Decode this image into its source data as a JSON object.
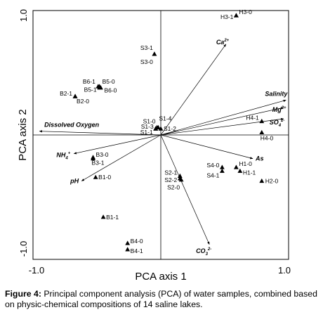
{
  "figure": {
    "caption_label": "Figure 4:",
    "caption_text": " Principal component analysis (PCA) of water samples, combined based on physic-chemical compositions of 14 saline lakes."
  },
  "chart_data": {
    "type": "scatter",
    "xlabel": "PCA axis 1",
    "ylabel": "PCA axis 2",
    "xlim": [
      -1.0,
      1.0
    ],
    "ylim": [
      -1.0,
      1.0
    ],
    "x_ticks": [
      "-1.0",
      "1.0"
    ],
    "y_ticks": [
      "1.0",
      "-1.0"
    ],
    "grid": false,
    "points": [
      {
        "x": 0.59,
        "y": 0.96,
        "label": "H3-0"
      },
      {
        "x": 0.59,
        "y": 0.96,
        "label": "H3-1"
      },
      {
        "x": -0.05,
        "y": 0.65,
        "label": "S3-1"
      },
      {
        "x": -0.05,
        "y": 0.65,
        "label": "S3-0"
      },
      {
        "x": -0.49,
        "y": 0.39,
        "label": "B6-1"
      },
      {
        "x": -0.48,
        "y": 0.39,
        "label": "B5-0"
      },
      {
        "x": -0.48,
        "y": 0.38,
        "label": "B5-1"
      },
      {
        "x": -0.47,
        "y": 0.38,
        "label": "B6-0"
      },
      {
        "x": -0.67,
        "y": 0.31,
        "label": "B2-1"
      },
      {
        "x": -0.67,
        "y": 0.31,
        "label": "B2-0"
      },
      {
        "x": -0.03,
        "y": 0.06,
        "label": "S1-0"
      },
      {
        "x": -0.02,
        "y": 0.06,
        "label": "S1-4"
      },
      {
        "x": -0.04,
        "y": 0.05,
        "label": "S1-3"
      },
      {
        "x": 0.0,
        "y": 0.05,
        "label": "S1-2"
      },
      {
        "x": -0.04,
        "y": 0.05,
        "label": "S1-1"
      },
      {
        "x": 0.79,
        "y": 0.11,
        "label": "H4-1"
      },
      {
        "x": 0.79,
        "y": 0.02,
        "label": "H4-0"
      },
      {
        "x": -0.53,
        "y": -0.18,
        "label": "B3-0"
      },
      {
        "x": -0.53,
        "y": -0.19,
        "label": "B3-1"
      },
      {
        "x": -0.51,
        "y": -0.34,
        "label": "B1-0"
      },
      {
        "x": 0.15,
        "y": -0.33,
        "label": "S2-1"
      },
      {
        "x": 0.15,
        "y": -0.35,
        "label": "S2-2"
      },
      {
        "x": 0.16,
        "y": -0.36,
        "label": "S2-0"
      },
      {
        "x": 0.48,
        "y": -0.26,
        "label": "S4-0"
      },
      {
        "x": 0.48,
        "y": -0.29,
        "label": "S4-1"
      },
      {
        "x": 0.59,
        "y": -0.26,
        "label": "H1-0"
      },
      {
        "x": 0.62,
        "y": -0.29,
        "label": "H1-1"
      },
      {
        "x": 0.79,
        "y": -0.37,
        "label": "H2-0"
      },
      {
        "x": -0.45,
        "y": -0.66,
        "label": "B1-1"
      },
      {
        "x": -0.26,
        "y": -0.87,
        "label": "B4-0"
      },
      {
        "x": -0.26,
        "y": -0.92,
        "label": "B4-1"
      }
    ],
    "vectors": [
      {
        "x": 0.51,
        "y": 0.73,
        "label": "Ca",
        "sup": "2+"
      },
      {
        "x": 0.98,
        "y": 0.28,
        "label": "Salinity",
        "sup": ""
      },
      {
        "x": 0.96,
        "y": 0.22,
        "label": "Mg",
        "sup": "2+"
      },
      {
        "x": 0.96,
        "y": 0.13,
        "label": "SO",
        "sub": "4",
        "sup": "2-"
      },
      {
        "x": -0.95,
        "y": 0.03,
        "label": "Dissolved Oxygen",
        "sup": ""
      },
      {
        "x": -0.68,
        "y": -0.15,
        "label": "NH",
        "sub": "4",
        "sup": "+"
      },
      {
        "x": 0.72,
        "y": -0.19,
        "label": "As",
        "sup": ""
      },
      {
        "x": -0.62,
        "y": -0.37,
        "label": "pH",
        "sup": ""
      },
      {
        "x": 0.38,
        "y": -0.88,
        "label": "CO",
        "sub": "3",
        "sup": "2-"
      }
    ]
  }
}
